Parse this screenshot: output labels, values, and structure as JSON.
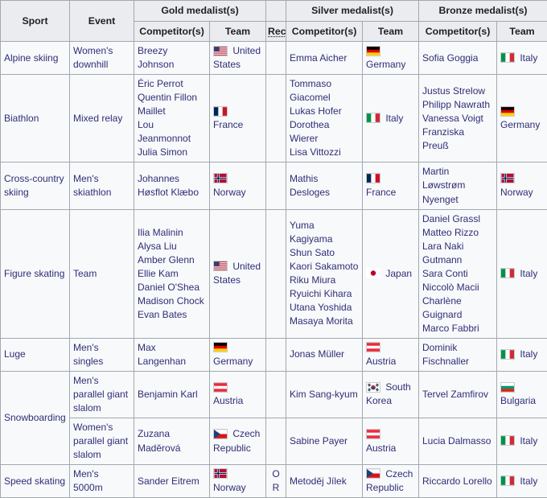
{
  "title": "Medal summary table",
  "colors": {
    "header_bg": "#eaecf0",
    "cell_bg": "#f8f9fa",
    "border": "#a2a9b1",
    "link_text": "#2e2e78",
    "header_text": "#202122"
  },
  "header": {
    "sport": "Sport",
    "event": "Event",
    "gold": "Gold medalist(s)",
    "silver": "Silver medalist(s)",
    "bronze": "Bronze medalist(s)",
    "competitors": "Competitor(s)",
    "team": "Team",
    "rec": "Rec"
  },
  "rows": [
    {
      "sport": "Alpine skiing",
      "sport_rowspan": 1,
      "event": "Women's downhill",
      "gold": {
        "competitors": [
          "Breezy Johnson"
        ],
        "team": "United States",
        "flag": "united-states"
      },
      "rec": "",
      "silver": {
        "competitors": [
          "Emma Aicher"
        ],
        "team": "Germany",
        "flag": "germany"
      },
      "bronze": {
        "competitors": [
          "Sofia Goggia"
        ],
        "team": "Italy",
        "flag": "italy"
      }
    },
    {
      "sport": "Biathlon",
      "sport_rowspan": 1,
      "event": "Mixed relay",
      "gold": {
        "competitors": [
          "Éric Perrot",
          "Quentin Fillon Maillet",
          "Lou Jeanmonnot",
          "Julia Simon"
        ],
        "team": "France",
        "flag": "france"
      },
      "rec": "",
      "silver": {
        "competitors": [
          "Tommaso Giacomel",
          "Lukas Hofer",
          "Dorothea Wierer",
          "Lisa Vittozzi"
        ],
        "team": "Italy",
        "flag": "italy"
      },
      "bronze": {
        "competitors": [
          "Justus Strelow",
          "Philipp Nawrath",
          "Vanessa Voigt",
          "Franziska Preuß"
        ],
        "team": "Germany",
        "flag": "germany"
      }
    },
    {
      "sport": "Cross-country skiing",
      "sport_rowspan": 1,
      "event": "Men's skiathlon",
      "gold": {
        "competitors": [
          "Johannes Høsflot Klæbo"
        ],
        "team": "Norway",
        "flag": "norway"
      },
      "rec": "",
      "silver": {
        "competitors": [
          "Mathis Desloges"
        ],
        "team": "France",
        "flag": "france"
      },
      "bronze": {
        "competitors": [
          "Martin Løwstrøm Nyenget"
        ],
        "team": "Norway",
        "flag": "norway"
      }
    },
    {
      "sport": "Figure skating",
      "sport_rowspan": 1,
      "event": "Team",
      "gold": {
        "competitors": [
          "Ilia Malinin",
          "Alysa Liu",
          "Amber Glenn",
          "Ellie Kam",
          "Daniel O'Shea",
          "Madison Chock",
          "Evan Bates"
        ],
        "team": "United States",
        "flag": "united-states"
      },
      "rec": "",
      "silver": {
        "competitors": [
          "Yuma Kagiyama",
          "Shun Sato",
          "Kaori Sakamoto",
          "Riku Miura",
          "Ryuichi Kihara",
          "Utana Yoshida",
          "Masaya Morita"
        ],
        "team": "Japan",
        "flag": "japan"
      },
      "bronze": {
        "competitors": [
          "Daniel Grassl",
          "Matteo Rizzo",
          "Lara Naki Gutmann",
          "Sara Conti",
          "Niccolò Macii",
          "Charlène Guignard",
          "Marco Fabbri"
        ],
        "team": "Italy",
        "flag": "italy"
      }
    },
    {
      "sport": "Luge",
      "sport_rowspan": 1,
      "event": "Men's singles",
      "gold": {
        "competitors": [
          "Max Langenhan"
        ],
        "team": "Germany",
        "flag": "germany"
      },
      "rec": "",
      "silver": {
        "competitors": [
          "Jonas Müller"
        ],
        "team": "Austria",
        "flag": "austria"
      },
      "bronze": {
        "competitors": [
          "Dominik Fischnaller"
        ],
        "team": "Italy",
        "flag": "italy"
      }
    },
    {
      "sport": "Snowboarding",
      "sport_rowspan": 2,
      "event": "Men's parallel giant slalom",
      "gold": {
        "competitors": [
          "Benjamin Karl"
        ],
        "team": "Austria",
        "flag": "austria"
      },
      "rec": "",
      "silver": {
        "competitors": [
          "Kim Sang-kyum"
        ],
        "team": "South Korea",
        "flag": "south-korea"
      },
      "bronze": {
        "competitors": [
          "Tervel Zamfirov"
        ],
        "team": "Bulgaria",
        "flag": "bulgaria"
      }
    },
    {
      "sport": null,
      "sport_rowspan": 0,
      "event": "Women's parallel giant slalom",
      "gold": {
        "competitors": [
          "Zuzana Maděrová"
        ],
        "team": "Czech Republic",
        "flag": "czech-republic"
      },
      "rec": "",
      "silver": {
        "competitors": [
          "Sabine Payer"
        ],
        "team": "Austria",
        "flag": "austria"
      },
      "bronze": {
        "competitors": [
          "Lucia Dalmasso"
        ],
        "team": "Italy",
        "flag": "italy"
      }
    },
    {
      "sport": "Speed skating",
      "sport_rowspan": 1,
      "event": "Men's 5000m",
      "gold": {
        "competitors": [
          "Sander Eitrem"
        ],
        "team": "Norway",
        "flag": "norway"
      },
      "rec": "OR",
      "silver": {
        "competitors": [
          "Metoděj Jílek"
        ],
        "team": "Czech Republic",
        "flag": "czech-republic"
      },
      "bronze": {
        "competitors": [
          "Riccardo Lorello"
        ],
        "team": "Italy",
        "flag": "italy"
      }
    }
  ]
}
